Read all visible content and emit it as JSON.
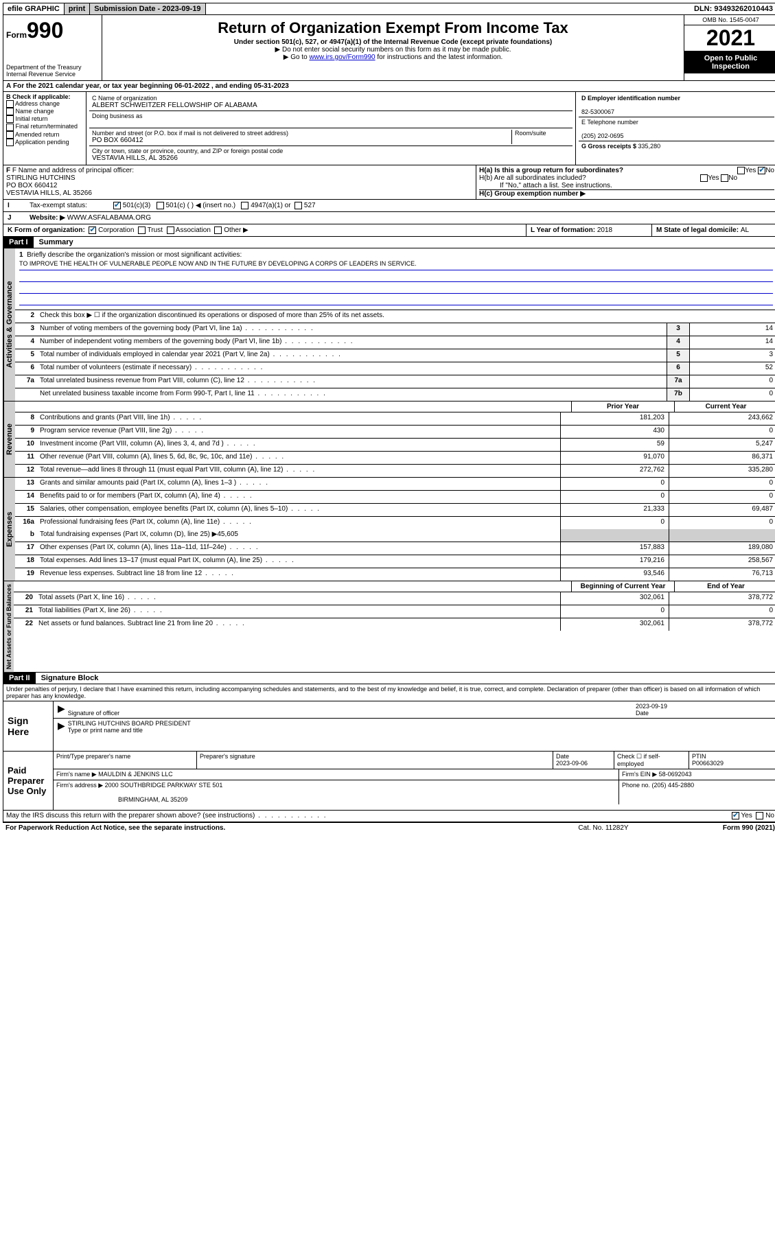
{
  "topbar": {
    "efile": "efile GRAPHIC",
    "print": "print",
    "sub_date_label": "Submission Date - ",
    "sub_date": "2023-09-19",
    "dln_label": "DLN: ",
    "dln": "93493262010443"
  },
  "header": {
    "form": "990",
    "form_prefix": "Form",
    "title": "Return of Organization Exempt From Income Tax",
    "subtitle": "Under section 501(c), 527, or 4947(a)(1) of the Internal Revenue Code (except private foundations)",
    "note1": "▶ Do not enter social security numbers on this form as it may be made public.",
    "note2_pre": "▶ Go to ",
    "note2_link": "www.irs.gov/Form990",
    "note2_post": " for instructions and the latest information.",
    "dept": "Department of the Treasury\nInternal Revenue Service",
    "omb": "OMB No. 1545-0047",
    "year": "2021",
    "inspect": "Open to Public Inspection"
  },
  "periodA": {
    "text_pre": "For the 2021 calendar year, or tax year beginning ",
    "begin": "06-01-2022",
    "text_mid": " , and ending ",
    "end": "05-31-2023"
  },
  "sectionB": {
    "label": "B Check if applicable:",
    "items": [
      "Address change",
      "Name change",
      "Initial return",
      "Final return/terminated",
      "Amended return",
      "Application pending"
    ]
  },
  "sectionC": {
    "name_label": "C Name of organization",
    "name": "ALBERT SCHWEITZER FELLOWSHIP OF ALABAMA",
    "dba_label": "Doing business as",
    "street_label": "Number and street (or P.O. box if mail is not delivered to street address)",
    "room_label": "Room/suite",
    "street": "PO BOX 660412",
    "city_label": "City or town, state or province, country, and ZIP or foreign postal code",
    "city": "VESTAVIA HILLS, AL  35266"
  },
  "sectionD": {
    "label": "D Employer identification number",
    "val": "82-5300067"
  },
  "sectionE": {
    "label": "E Telephone number",
    "val": "(205) 202-0695"
  },
  "sectionG": {
    "label": "G Gross receipts $ ",
    "val": "335,280"
  },
  "sectionF": {
    "label": "F Name and address of principal officer:",
    "name": "STIRLING HUTCHINS",
    "street": "PO BOX 660412",
    "city": "VESTAVIA HILLS, AL  35266"
  },
  "sectionH": {
    "a": "H(a)  Is this a group return for subordinates?",
    "b": "H(b)  Are all subordinates included?",
    "b_note": "If \"No,\" attach a list. See instructions.",
    "c": "H(c)  Group exemption number ▶",
    "yes": "Yes",
    "no": "No"
  },
  "sectionI": {
    "label": "Tax-exempt status:",
    "opt1": "501(c)(3)",
    "opt2": "501(c) (   ) ◀ (insert no.)",
    "opt3": "4947(a)(1) or",
    "opt4": "527"
  },
  "sectionJ": {
    "label": "Website: ▶",
    "val": "WWW.ASFALABAMA.ORG"
  },
  "sectionK": {
    "label": "K Form of organization:",
    "opts": [
      "Corporation",
      "Trust",
      "Association",
      "Other ▶"
    ]
  },
  "sectionL": {
    "label": "L Year of formation: ",
    "val": "2018"
  },
  "sectionM": {
    "label": "M State of legal domicile: ",
    "val": "AL"
  },
  "part1": {
    "header": "Part I",
    "title": "Summary",
    "line1_label": "Briefly describe the organization's mission or most significant activities:",
    "mission": "TO IMPROVE THE HEALTH OF VULNERABLE PEOPLE NOW AND IN THE FUTURE BY DEVELOPING A CORPS OF LEADERS IN SERVICE.",
    "line2": "Check this box ▶ ☐  if the organization discontinued its operations or disposed of more than 25% of its net assets.",
    "tabs": {
      "gov": "Activities & Governance",
      "rev": "Revenue",
      "exp": "Expenses",
      "net": "Net Assets or Fund Balances"
    },
    "gov_lines": [
      {
        "n": "3",
        "d": "Number of voting members of the governing body (Part VI, line 1a)",
        "box": "3",
        "v": "14"
      },
      {
        "n": "4",
        "d": "Number of independent voting members of the governing body (Part VI, line 1b)",
        "box": "4",
        "v": "14"
      },
      {
        "n": "5",
        "d": "Total number of individuals employed in calendar year 2021 (Part V, line 2a)",
        "box": "5",
        "v": "3"
      },
      {
        "n": "6",
        "d": "Total number of volunteers (estimate if necessary)",
        "box": "6",
        "v": "52"
      },
      {
        "n": "7a",
        "d": "Total unrelated business revenue from Part VIII, column (C), line 12",
        "box": "7a",
        "v": "0"
      },
      {
        "n": "",
        "d": "Net unrelated business taxable income from Form 990-T, Part I, line 11",
        "box": "7b",
        "v": "0"
      }
    ],
    "col_prior": "Prior Year",
    "col_current": "Current Year",
    "col_begin": "Beginning of Current Year",
    "col_end": "End of Year",
    "rev_lines": [
      {
        "n": "8",
        "d": "Contributions and grants (Part VIII, line 1h)",
        "p": "181,203",
        "c": "243,662"
      },
      {
        "n": "9",
        "d": "Program service revenue (Part VIII, line 2g)",
        "p": "430",
        "c": "0"
      },
      {
        "n": "10",
        "d": "Investment income (Part VIII, column (A), lines 3, 4, and 7d )",
        "p": "59",
        "c": "5,247"
      },
      {
        "n": "11",
        "d": "Other revenue (Part VIII, column (A), lines 5, 6d, 8c, 9c, 10c, and 11e)",
        "p": "91,070",
        "c": "86,371"
      },
      {
        "n": "12",
        "d": "Total revenue—add lines 8 through 11 (must equal Part VIII, column (A), line 12)",
        "p": "272,762",
        "c": "335,280"
      }
    ],
    "exp_lines": [
      {
        "n": "13",
        "d": "Grants and similar amounts paid (Part IX, column (A), lines 1–3 )",
        "p": "0",
        "c": "0"
      },
      {
        "n": "14",
        "d": "Benefits paid to or for members (Part IX, column (A), line 4)",
        "p": "0",
        "c": "0"
      },
      {
        "n": "15",
        "d": "Salaries, other compensation, employee benefits (Part IX, column (A), lines 5–10)",
        "p": "21,333",
        "c": "69,487"
      },
      {
        "n": "16a",
        "d": "Professional fundraising fees (Part IX, column (A), line 11e)",
        "p": "0",
        "c": "0"
      }
    ],
    "line16b_pre": "Total fundraising expenses (Part IX, column (D), line 25) ▶",
    "line16b_val": "45,605",
    "exp_lines2": [
      {
        "n": "17",
        "d": "Other expenses (Part IX, column (A), lines 11a–11d, 11f–24e)",
        "p": "157,883",
        "c": "189,080"
      },
      {
        "n": "18",
        "d": "Total expenses. Add lines 13–17 (must equal Part IX, column (A), line 25)",
        "p": "179,216",
        "c": "258,567"
      },
      {
        "n": "19",
        "d": "Revenue less expenses. Subtract line 18 from line 12",
        "p": "93,546",
        "c": "76,713"
      }
    ],
    "net_lines": [
      {
        "n": "20",
        "d": "Total assets (Part X, line 16)",
        "p": "302,061",
        "c": "378,772"
      },
      {
        "n": "21",
        "d": "Total liabilities (Part X, line 26)",
        "p": "0",
        "c": "0"
      },
      {
        "n": "22",
        "d": "Net assets or fund balances. Subtract line 21 from line 20",
        "p": "302,061",
        "c": "378,772"
      }
    ]
  },
  "part2": {
    "header": "Part II",
    "title": "Signature Block",
    "decl": "Under penalties of perjury, I declare that I have examined this return, including accompanying schedules and statements, and to the best of my knowledge and belief, it is true, correct, and complete. Declaration of preparer (other than officer) is based on all information of which preparer has any knowledge.",
    "sign_here": "Sign Here",
    "sig_officer": "Signature of officer",
    "sig_date": "2023-09-19",
    "date_label": "Date",
    "officer_name": "STIRLING HUTCHINS BOARD PRESIDENT",
    "name_title_label": "Type or print name and title",
    "paid_prep": "Paid Preparer Use Only",
    "prep_name_label": "Print/Type preparer's name",
    "prep_sig_label": "Preparer's signature",
    "prep_date_label": "Date",
    "prep_date": "2023-09-06",
    "check_label": "Check ☐ if self-employed",
    "ptin_label": "PTIN",
    "ptin": "P00663029",
    "firm_name_label": "Firm's name    ▶ ",
    "firm_name": "MAULDIN & JENKINS LLC",
    "firm_ein_label": "Firm's EIN ▶ ",
    "firm_ein": "58-0692043",
    "firm_addr_label": "Firm's address ▶ ",
    "firm_addr1": "2000 SOUTHBRIDGE PARKWAY STE 501",
    "firm_addr2": "BIRMINGHAM, AL  35209",
    "phone_label": "Phone no. ",
    "phone": "(205) 445-2880",
    "discuss": "May the IRS discuss this return with the preparer shown above? (see instructions)"
  },
  "footer": {
    "left": "For Paperwork Reduction Act Notice, see the separate instructions.",
    "mid": "Cat. No. 11282Y",
    "right": "Form 990 (2021)"
  }
}
